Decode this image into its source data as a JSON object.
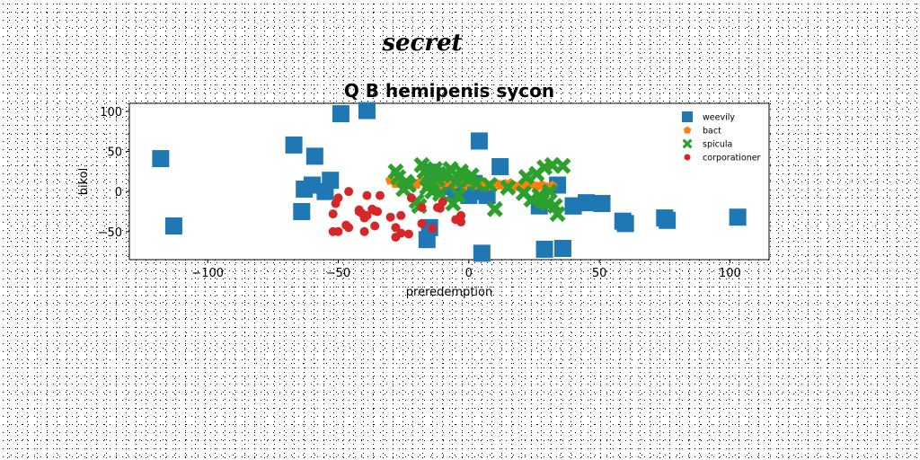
{
  "stamp": "secret",
  "chart_data": {
    "type": "scatter",
    "title": "Q B hemipenis sycon",
    "xlabel": "preredemption",
    "ylabel": "bikol",
    "xlim": [
      -130,
      115
    ],
    "ylim": [
      -85,
      110
    ],
    "xticks": [
      -100,
      -50,
      0,
      50,
      100
    ],
    "yticks": [
      -50,
      0,
      50,
      100
    ],
    "xtick_labels": [
      "−100",
      "−50",
      "0",
      "50",
      "100"
    ],
    "ytick_labels": [
      "−50",
      "0",
      "50",
      "100"
    ],
    "grid": false,
    "legend_position": "top-right",
    "series": [
      {
        "name": "weevily",
        "marker": "square",
        "color": "#1f77b4",
        "x": [
          -118,
          -113,
          -67,
          -64,
          -63,
          -60,
          -59,
          -55,
          -53,
          -49,
          -39,
          -16,
          -15,
          -14,
          -10,
          -5,
          0,
          2,
          4,
          5,
          5,
          7,
          12,
          27,
          29,
          34,
          36,
          40,
          40,
          45,
          51,
          59,
          60,
          75,
          76,
          103
        ],
        "y": [
          41,
          -43,
          58,
          -25,
          3,
          8,
          44,
          0,
          14,
          97,
          101,
          -60,
          -45,
          24,
          6,
          -2,
          -5,
          10,
          63,
          -77,
          0,
          -5,
          31,
          -18,
          -72,
          8,
          -71,
          -18,
          -18,
          -14,
          -15,
          -37,
          -40,
          -33,
          -36,
          -32
        ]
      },
      {
        "name": "bact",
        "marker": "pentagon",
        "color": "#ff7f0e",
        "x": [
          -30,
          -28,
          -26,
          -24,
          -22,
          -20,
          -18,
          -16,
          -14,
          -12,
          -10,
          -8,
          -6,
          -4,
          -2,
          0,
          2,
          4,
          6,
          8,
          10,
          12,
          14,
          16,
          18,
          20,
          22,
          24,
          26,
          28,
          30,
          32
        ],
        "y": [
          14,
          10,
          12,
          8,
          11,
          9,
          13,
          7,
          10,
          12,
          8,
          11,
          9,
          10,
          7,
          12,
          8,
          10,
          9,
          7,
          11,
          8,
          9,
          10,
          6,
          8,
          7,
          9,
          6,
          8,
          5,
          7
        ]
      },
      {
        "name": "spicula",
        "marker": "x",
        "color": "#2ca02c",
        "x": [
          -28,
          -27,
          -25,
          -24,
          -23,
          -20,
          -19,
          -18,
          -17,
          -16,
          -15,
          -14,
          -13,
          -12,
          -11,
          -10,
          -8,
          -7,
          -6,
          -5,
          -4,
          -3,
          -2,
          0,
          1,
          3,
          8,
          10,
          15,
          21,
          22,
          24,
          26,
          27,
          28,
          29,
          30,
          31,
          32,
          33,
          34,
          36
        ],
        "y": [
          25,
          18,
          3,
          12,
          8,
          -12,
          -18,
          33,
          25,
          5,
          10,
          0,
          28,
          15,
          -3,
          20,
          22,
          28,
          -15,
          12,
          -5,
          25,
          18,
          15,
          20,
          10,
          8,
          -22,
          5,
          -2,
          18,
          -10,
          22,
          -5,
          -12,
          30,
          -15,
          0,
          33,
          -18,
          -28,
          32
        ]
      },
      {
        "name": "corporationer",
        "marker": "circle",
        "color": "#d62728",
        "x": [
          -52,
          -52,
          -51,
          -50,
          -50,
          -47,
          -46,
          -46,
          -42,
          -42,
          -41,
          -40,
          -40,
          -39,
          -39,
          -37,
          -36,
          -36,
          -35,
          -34,
          -30,
          -28,
          -28,
          -26,
          -26,
          -23,
          -22,
          -18,
          -18,
          -14,
          -12,
          -11,
          -10,
          -5,
          -3,
          -3
        ],
        "y": [
          -50,
          -28,
          -15,
          -8,
          -50,
          -42,
          -45,
          0,
          -23,
          -25,
          -27,
          -33,
          -50,
          -30,
          -5,
          -22,
          -43,
          -24,
          -25,
          -5,
          -32,
          -45,
          -57,
          -30,
          -52,
          -53,
          -8,
          -20,
          -40,
          -46,
          -20,
          -21,
          -13,
          -35,
          -38,
          -30
        ]
      }
    ]
  }
}
